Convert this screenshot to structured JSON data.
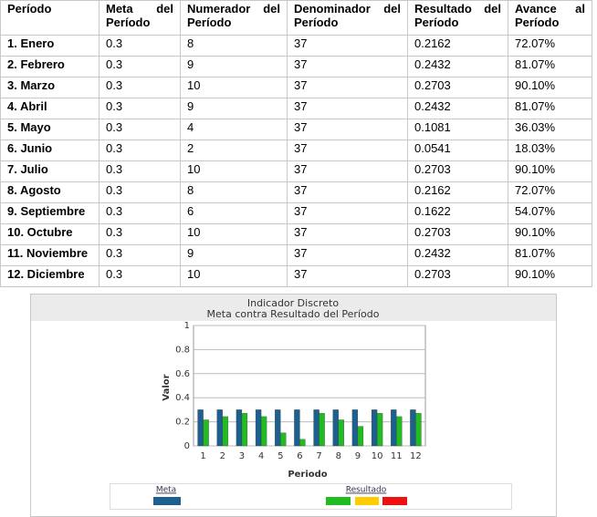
{
  "table": {
    "headers": [
      "Período",
      "Meta del Período",
      "Numerador del Período",
      "Denominador del Período",
      "Resultado del Período",
      "Avance al Período"
    ],
    "rows": [
      [
        "1. Enero",
        "0.3",
        "8",
        "37",
        "0.2162",
        "72.07%"
      ],
      [
        "2. Febrero",
        "0.3",
        "9",
        "37",
        "0.2432",
        "81.07%"
      ],
      [
        "3. Marzo",
        "0.3",
        "10",
        "37",
        "0.2703",
        "90.10%"
      ],
      [
        "4. Abril",
        "0.3",
        "9",
        "37",
        "0.2432",
        "81.07%"
      ],
      [
        "5. Mayo",
        "0.3",
        "4",
        "37",
        "0.1081",
        "36.03%"
      ],
      [
        "6. Junio",
        "0.3",
        "2",
        "37",
        "0.0541",
        "18.03%"
      ],
      [
        "7. Julio",
        "0.3",
        "10",
        "37",
        "0.2703",
        "90.10%"
      ],
      [
        "8. Agosto",
        "0.3",
        "8",
        "37",
        "0.2162",
        "72.07%"
      ],
      [
        "9. Septiembre",
        "0.3",
        "6",
        "37",
        "0.1622",
        "54.07%"
      ],
      [
        "10. Octubre",
        "0.3",
        "10",
        "37",
        "0.2703",
        "90.10%"
      ],
      [
        "11. Noviembre",
        "0.3",
        "9",
        "37",
        "0.2432",
        "81.07%"
      ],
      [
        "12. Diciembre",
        "0.3",
        "10",
        "37",
        "0.2703",
        "90.10%"
      ]
    ]
  },
  "chart_data": {
    "type": "bar",
    "title": "Indicador Discreto",
    "subtitle": "Meta contra Resultado del Período",
    "x_label": "Periodo",
    "y_label": "Valor",
    "categories": [
      "1",
      "2",
      "3",
      "4",
      "5",
      "6",
      "7",
      "8",
      "9",
      "10",
      "11",
      "12"
    ],
    "series": [
      {
        "name": "Meta",
        "color": "#1d5f8e",
        "values": [
          0.3,
          0.3,
          0.3,
          0.3,
          0.3,
          0.3,
          0.3,
          0.3,
          0.3,
          0.3,
          0.3,
          0.3
        ]
      },
      {
        "name": "Resultado",
        "color": "#22bb22",
        "values": [
          0.2162,
          0.2432,
          0.2703,
          0.2432,
          0.1081,
          0.0541,
          0.2703,
          0.2162,
          0.1622,
          0.2703,
          0.2432,
          0.2703
        ]
      }
    ],
    "ylim": [
      0,
      1
    ],
    "yticks": [
      0,
      0.2,
      0.4,
      0.6,
      0.8,
      1
    ],
    "grid": true
  }
}
